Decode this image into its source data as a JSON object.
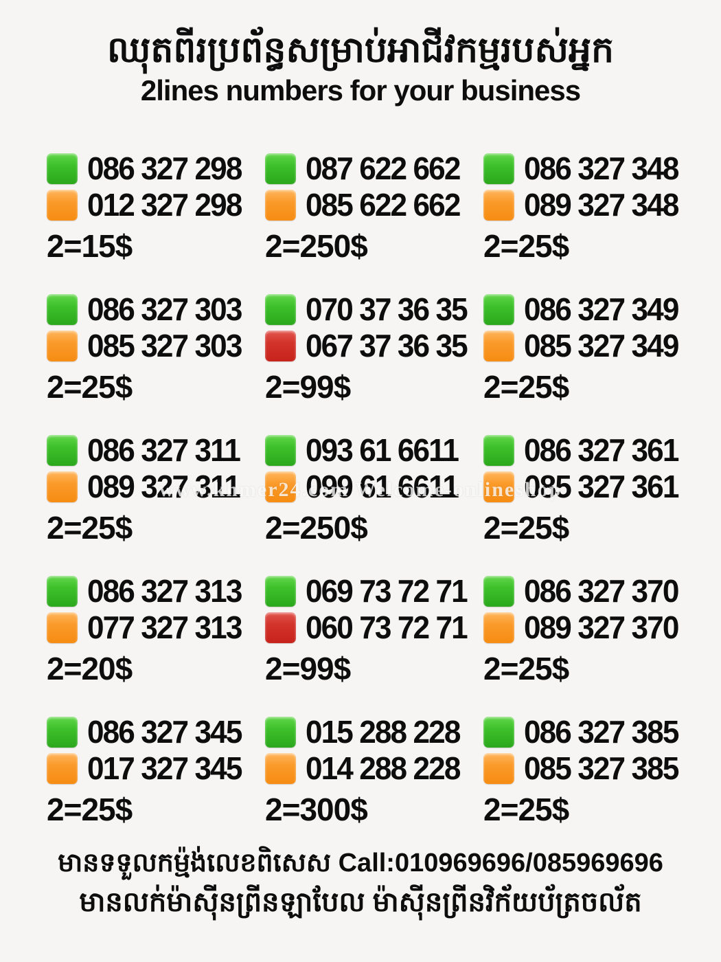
{
  "header": {
    "title_khmer": "ឈុតពីរប្រព័ន្ធសម្រាប់អាជីវកម្មរបស់អ្នក",
    "subtitle": "2lines numbers for your business"
  },
  "watermark": {
    "text": "www.khmer24.com Welcome-onlineshop"
  },
  "colors": {
    "green_square": "#2ba71c",
    "orange_square": "#f68c12",
    "red_square": "#c6231b",
    "background": "#f6f5f3",
    "text": "#0d0d0d"
  },
  "icons": {
    "green_square": "green-rounded-square",
    "orange_square": "orange-rounded-square",
    "red_square": "red-rounded-square"
  },
  "listings": [
    {
      "line1": {
        "color": "green",
        "number": "086 327 298"
      },
      "line2": {
        "color": "orange",
        "number": "012 327 298"
      },
      "price": "2=15$"
    },
    {
      "line1": {
        "color": "green",
        "number": "087 622 662"
      },
      "line2": {
        "color": "orange",
        "number": "085 622 662"
      },
      "price": "2=250$"
    },
    {
      "line1": {
        "color": "green",
        "number": "086 327 348"
      },
      "line2": {
        "color": "orange",
        "number": "089 327 348"
      },
      "price": "2=25$"
    },
    {
      "line1": {
        "color": "green",
        "number": "086 327 303"
      },
      "line2": {
        "color": "orange",
        "number": "085 327 303"
      },
      "price": "2=25$"
    },
    {
      "line1": {
        "color": "green",
        "number": "070 37 36 35"
      },
      "line2": {
        "color": "red",
        "number": "067 37 36 35"
      },
      "price": "2=99$"
    },
    {
      "line1": {
        "color": "green",
        "number": "086 327 349"
      },
      "line2": {
        "color": "orange",
        "number": "085 327 349"
      },
      "price": "2=25$"
    },
    {
      "line1": {
        "color": "green",
        "number": "086 327 311"
      },
      "line2": {
        "color": "orange",
        "number": "089 327 311"
      },
      "price": "2=25$"
    },
    {
      "line1": {
        "color": "green",
        "number": "093 61 6611"
      },
      "line2": {
        "color": "orange",
        "number": "099 61 6611"
      },
      "price": "2=250$"
    },
    {
      "line1": {
        "color": "green",
        "number": "086 327 361"
      },
      "line2": {
        "color": "orange",
        "number": "085 327 361"
      },
      "price": "2=25$"
    },
    {
      "line1": {
        "color": "green",
        "number": "086 327 313"
      },
      "line2": {
        "color": "orange",
        "number": "077 327 313"
      },
      "price": "2=20$"
    },
    {
      "line1": {
        "color": "green",
        "number": "069 73 72 71"
      },
      "line2": {
        "color": "red",
        "number": "060 73 72 71"
      },
      "price": "2=99$"
    },
    {
      "line1": {
        "color": "green",
        "number": "086 327 370"
      },
      "line2": {
        "color": "orange",
        "number": "089 327 370"
      },
      "price": "2=25$"
    },
    {
      "line1": {
        "color": "green",
        "number": "086 327 345"
      },
      "line2": {
        "color": "orange",
        "number": "017 327 345"
      },
      "price": "2=25$"
    },
    {
      "line1": {
        "color": "green",
        "number": "015 288 228"
      },
      "line2": {
        "color": "orange",
        "number": "014 288 228"
      },
      "price": "2=300$"
    },
    {
      "line1": {
        "color": "green",
        "number": "086 327 385"
      },
      "line2": {
        "color": "orange",
        "number": "085 327 385"
      },
      "price": "2=25$"
    }
  ],
  "footer": {
    "line1": "មានទទួលកម្ម៉ង់លេខពិសេស Call:010969696/085969696",
    "line2": "មានលក់ម៉ាស៊ីនព្រីនឡាបែល ម៉ាស៊ីនព្រីនវិក័យប័ត្រចល័ត"
  }
}
